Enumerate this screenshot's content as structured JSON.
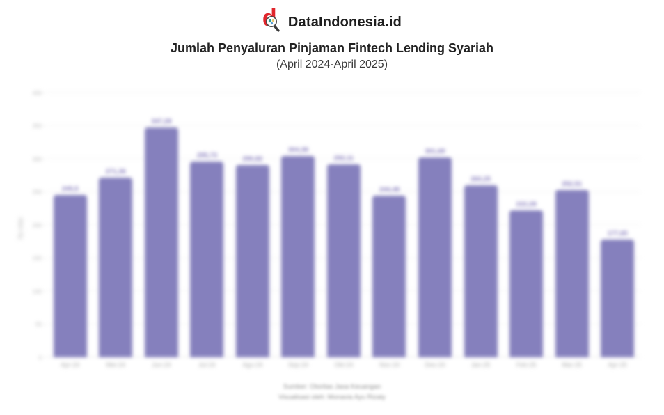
{
  "brand": {
    "name": "DataIndonesia.id",
    "logo_icon": "magnifier-d-logo",
    "logo_color": "#e0262c"
  },
  "header": {
    "title": "Jumlah Penyaluran Pinjaman Fintech Lending Syariah",
    "subtitle": "(April 2024-April 2025)"
  },
  "chart_data": {
    "type": "bar",
    "title": "Jumlah Penyaluran Pinjaman Fintech Lending Syariah",
    "subtitle": "(April 2024-April 2025)",
    "xlabel": "",
    "ylabel": "Rp miliar",
    "ylim": [
      0,
      400
    ],
    "ytick_step": 50,
    "yticks": [
      0,
      50,
      100,
      150,
      200,
      250,
      300,
      350,
      400
    ],
    "grid": true,
    "legend": "none",
    "bar_color": "#8580bd",
    "categories": [
      "Apr-24",
      "Mei-24",
      "Jun-24",
      "Jul-24",
      "Agu-24",
      "Sep-24",
      "Okt-24",
      "Nov-24",
      "Des-24",
      "Jan-25",
      "Feb-25",
      "Mar-25",
      "Apr-25"
    ],
    "values": [
      245.5,
      271.36,
      347.28,
      295.73,
      290.82,
      304.38,
      292.11,
      244.48,
      301.69,
      260.25,
      222.28,
      252.51,
      177.65
    ],
    "value_labels": [
      "245,5",
      "271,36",
      "347,28",
      "295,73",
      "290,82",
      "304,38",
      "292,11",
      "244,48",
      "301,69",
      "260,25",
      "222,28",
      "252,51",
      "177,65"
    ]
  },
  "footer": {
    "source": "Sumber: Otoritas Jasa Keuangan",
    "credit": "Visualisasi oleh: Monavia Ayu Rizaty"
  }
}
